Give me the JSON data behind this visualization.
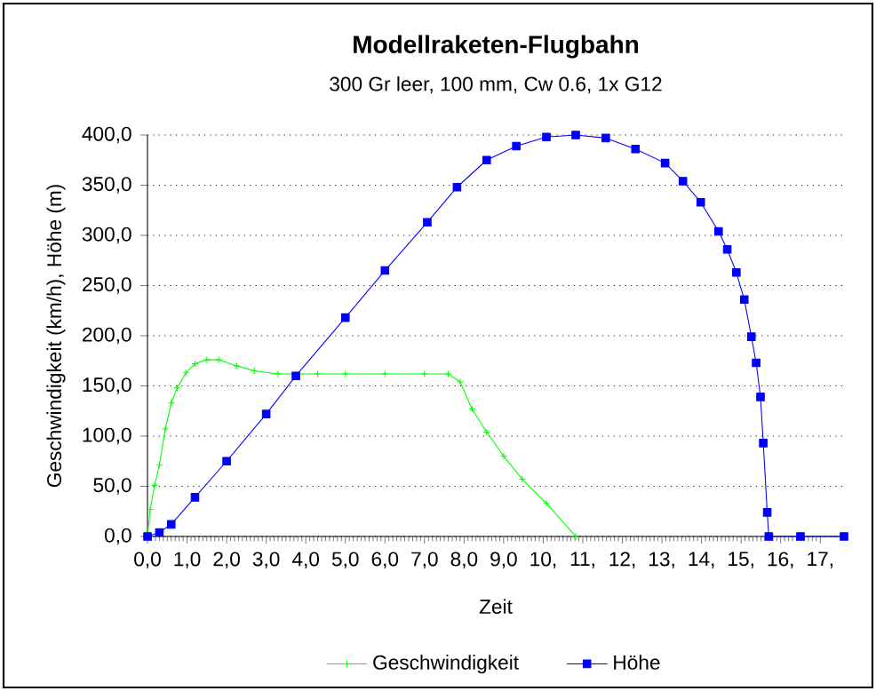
{
  "chart_data": {
    "type": "line",
    "title": "Modellraketen-Flugbahn",
    "subtitle": "300 Gr leer,  100 mm, Cw 0.6, 1x G12",
    "xlabel": "Zeit",
    "ylabel": "Geschwindigkeit (km/h), Höhe (m)",
    "xlim": [
      0,
      17.6
    ],
    "ylim": [
      0,
      400
    ],
    "xticks": [
      {
        "value": 0,
        "label": "0,0"
      },
      {
        "value": 1,
        "label": "1,0"
      },
      {
        "value": 2,
        "label": "2,0"
      },
      {
        "value": 3,
        "label": "3,0"
      },
      {
        "value": 4,
        "label": "4,0"
      },
      {
        "value": 5,
        "label": "5,0"
      },
      {
        "value": 6,
        "label": "6,0"
      },
      {
        "value": 7,
        "label": "7,0"
      },
      {
        "value": 8,
        "label": "8,0"
      },
      {
        "value": 9,
        "label": "9,0"
      },
      {
        "value": 10,
        "label": "10,"
      },
      {
        "value": 11,
        "label": "11,"
      },
      {
        "value": 12,
        "label": "12,"
      },
      {
        "value": 13,
        "label": "13,"
      },
      {
        "value": 14,
        "label": "14,"
      },
      {
        "value": 15,
        "label": "15,"
      },
      {
        "value": 16,
        "label": "16,"
      },
      {
        "value": 17,
        "label": "17,"
      }
    ],
    "yticks": [
      {
        "value": 0,
        "label": "0,0"
      },
      {
        "value": 50,
        "label": "50,0"
      },
      {
        "value": 100,
        "label": "100,0"
      },
      {
        "value": 150,
        "label": "150,0"
      },
      {
        "value": 200,
        "label": "200,0"
      },
      {
        "value": 250,
        "label": "250,0"
      },
      {
        "value": 300,
        "label": "300,0"
      },
      {
        "value": 350,
        "label": "350,0"
      },
      {
        "value": 400,
        "label": "400,0"
      }
    ],
    "grid": "y",
    "legend": "bottom",
    "series": [
      {
        "name": "Geschwindigkeit",
        "color": "#00ff00",
        "marker": "cross",
        "x": [
          0,
          0.07,
          0.18,
          0.3,
          0.45,
          0.6,
          0.75,
          0.97,
          1.2,
          1.5,
          1.8,
          2.25,
          2.7,
          3.3,
          4.3,
          5.0,
          6.0,
          7.0,
          7.6,
          7.9,
          8.2,
          8.57,
          9.0,
          9.47,
          10.08,
          10.82
        ],
        "values": [
          0,
          27,
          51,
          71,
          107,
          133,
          148,
          163,
          172,
          176,
          176,
          170,
          165,
          162,
          162,
          162,
          162,
          162,
          162,
          154,
          127,
          104,
          80,
          57,
          33,
          0
        ]
      },
      {
        "name": "Höhe",
        "color": "#0000ff",
        "marker": "square",
        "x": [
          0,
          0.3,
          0.6,
          1.2,
          2.0,
          3.0,
          3.75,
          5.0,
          6.0,
          7.07,
          7.82,
          8.57,
          9.32,
          10.08,
          10.82,
          11.58,
          12.33,
          13.08,
          13.53,
          13.98,
          14.43,
          14.65,
          14.88,
          15.08,
          15.26,
          15.38,
          15.49,
          15.56,
          15.66,
          15.7,
          16.5,
          17.6
        ],
        "values": [
          0,
          4,
          12,
          39,
          75,
          122,
          160,
          218,
          265,
          313,
          348,
          375,
          389,
          398,
          400,
          397,
          386,
          372,
          354,
          333,
          304,
          286,
          263,
          236,
          199,
          173,
          139,
          93,
          24,
          0,
          0,
          0
        ]
      }
    ]
  }
}
